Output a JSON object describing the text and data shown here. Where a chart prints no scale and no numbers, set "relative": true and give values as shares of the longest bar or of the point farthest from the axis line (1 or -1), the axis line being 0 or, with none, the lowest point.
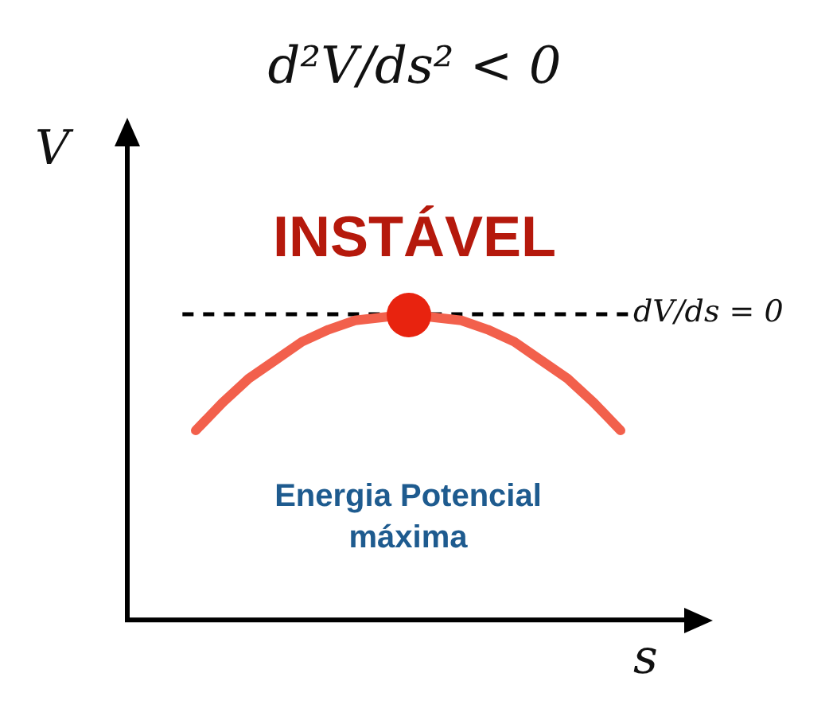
{
  "chart_data": {
    "type": "line",
    "title": "d²V/ds² < 0",
    "xlabel": "s",
    "ylabel": "V",
    "relative": true,
    "categories": [
      null,
      null,
      null,
      null,
      null,
      null,
      null,
      null,
      null,
      null,
      null,
      null,
      null,
      null,
      null,
      null,
      null
    ],
    "series": [
      {
        "color": "#f2604c",
        "values": [
          0.62,
          0.71,
          0.79,
          0.85,
          0.91,
          0.95,
          0.98,
          0.99,
          1,
          0.99,
          0.98,
          0.95,
          0.91,
          0.85,
          0.79,
          0.71,
          0.62
        ]
      }
    ],
    "ref_lines": [
      {
        "axis": "y",
        "value": 1,
        "color": "#000000",
        "line_style": "dashed"
      }
    ],
    "annotations": [
      "INSTÁVEL",
      "Energia Potencial máxima",
      "dV/ds = 0"
    ]
  }
}
